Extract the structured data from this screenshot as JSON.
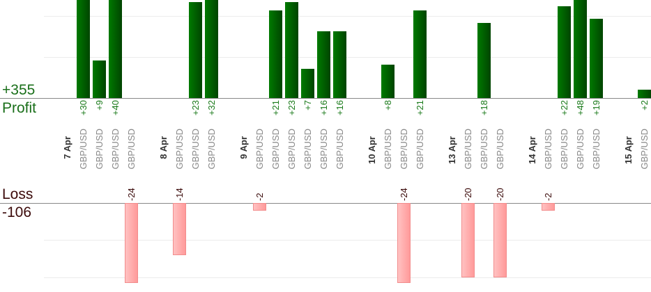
{
  "summary": {
    "profit_total": "+355",
    "profit_label": "Profit",
    "loss_label": "Loss",
    "loss_total": "-106"
  },
  "colors": {
    "profit": "#006600",
    "loss": "#ffaaaa"
  },
  "chart_data": {
    "type": "bar",
    "title": "",
    "slots": [
      {
        "kind": "date",
        "label": "7 Apr"
      },
      {
        "kind": "trade",
        "label": "GBP/USD",
        "value": 30,
        "text": "+30"
      },
      {
        "kind": "trade",
        "label": "GBP/USD",
        "value": 9,
        "text": "+9"
      },
      {
        "kind": "trade",
        "label": "GBP/USD",
        "value": 40,
        "text": "+40"
      },
      {
        "kind": "trade",
        "label": "GBP/USD",
        "value": -24,
        "text": "-24"
      },
      {
        "kind": "gap"
      },
      {
        "kind": "date",
        "label": "8 Apr"
      },
      {
        "kind": "trade",
        "label": "GBP/USD",
        "value": -14,
        "text": "-14"
      },
      {
        "kind": "trade",
        "label": "GBP/USD",
        "value": 23,
        "text": "+23"
      },
      {
        "kind": "trade",
        "label": "GBP/USD",
        "value": 32,
        "text": "+32"
      },
      {
        "kind": "gap"
      },
      {
        "kind": "date",
        "label": "9 Apr"
      },
      {
        "kind": "trade",
        "label": "GBP/USD",
        "value": -2,
        "text": "-2"
      },
      {
        "kind": "trade",
        "label": "GBP/USD",
        "value": 21,
        "text": "+21"
      },
      {
        "kind": "trade",
        "label": "GBP/USD",
        "value": 23,
        "text": "+23"
      },
      {
        "kind": "trade",
        "label": "GBP/USD",
        "value": 7,
        "text": "+7"
      },
      {
        "kind": "trade",
        "label": "GBP/USD",
        "value": 16,
        "text": "+16"
      },
      {
        "kind": "trade",
        "label": "GBP/USD",
        "value": 16,
        "text": "+16"
      },
      {
        "kind": "gap"
      },
      {
        "kind": "date",
        "label": "10 Apr"
      },
      {
        "kind": "trade",
        "label": "GBP/USD",
        "value": 8,
        "text": "+8"
      },
      {
        "kind": "trade",
        "label": "GBP/USD",
        "value": -24,
        "text": "-24"
      },
      {
        "kind": "trade",
        "label": "GBP/USD",
        "value": 21,
        "text": "+21"
      },
      {
        "kind": "gap"
      },
      {
        "kind": "date",
        "label": "13 Apr"
      },
      {
        "kind": "trade",
        "label": "GBP/USD",
        "value": -20,
        "text": "-20"
      },
      {
        "kind": "trade",
        "label": "GBP/USD",
        "value": 18,
        "text": "+18"
      },
      {
        "kind": "trade",
        "label": "GBP/USD",
        "value": -20,
        "text": "-20"
      },
      {
        "kind": "gap"
      },
      {
        "kind": "date",
        "label": "14 Apr"
      },
      {
        "kind": "trade",
        "label": "GBP/USD",
        "value": -2,
        "text": "-2"
      },
      {
        "kind": "trade",
        "label": "GBP/USD",
        "value": 22,
        "text": "+22"
      },
      {
        "kind": "trade",
        "label": "GBP/USD",
        "value": 48,
        "text": "+48"
      },
      {
        "kind": "trade",
        "label": "GBP/USD",
        "value": 19,
        "text": "+19"
      },
      {
        "kind": "gap"
      },
      {
        "kind": "date",
        "label": "15 Apr"
      },
      {
        "kind": "trade",
        "label": "GBP/USD",
        "value": 2,
        "text": "+2"
      }
    ]
  }
}
